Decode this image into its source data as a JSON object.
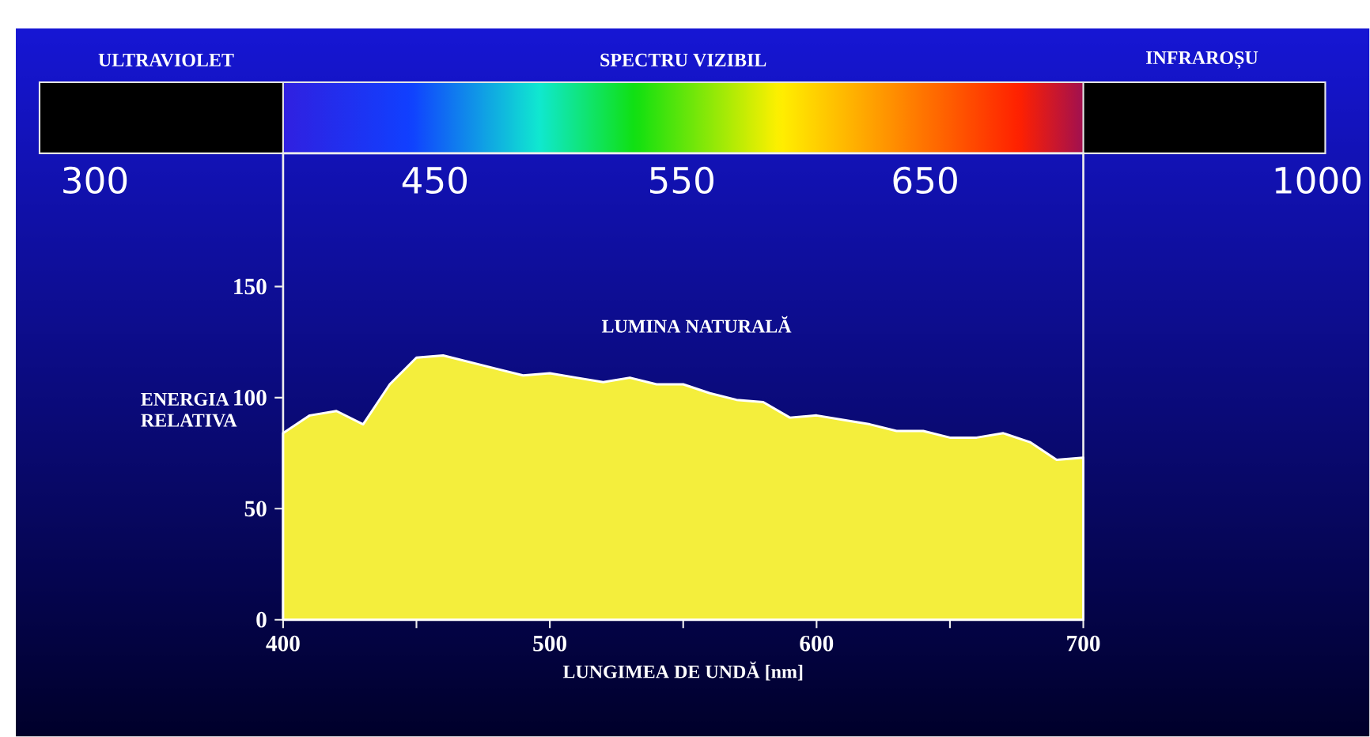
{
  "chart_data": {
    "type": "area",
    "xlabel": "LUNGIMEA DE UNDĂ [nm]",
    "ylabel": "ENERGIA RELATIVA",
    "x": [
      400,
      410,
      420,
      430,
      440,
      450,
      460,
      470,
      480,
      490,
      500,
      510,
      520,
      530,
      540,
      550,
      560,
      570,
      580,
      590,
      600,
      610,
      620,
      630,
      640,
      650,
      660,
      670,
      680,
      690,
      700
    ],
    "series": [
      {
        "name": "LUMINA NATURALĂ",
        "color": "#f4ee3c",
        "values": [
          84,
          92,
          94,
          88,
          106,
          118,
          119,
          116,
          113,
          110,
          111,
          109,
          107,
          109,
          106,
          106,
          102,
          99,
          98,
          91,
          92,
          90,
          88,
          85,
          85,
          82,
          82,
          84,
          80,
          72,
          73
        ]
      }
    ],
    "xlim": [
      400,
      700
    ],
    "ylim": [
      0,
      210
    ],
    "xticks": [
      400,
      {
        "value": 450,
        "label": null
      },
      500,
      {
        "value": 550,
        "label": null
      },
      600,
      {
        "value": 650,
        "label": null
      },
      700
    ],
    "yticks": [
      0,
      50,
      100,
      150
    ],
    "grid": false,
    "annotations": [
      "ULTRAVIOLET",
      "SPECTRU VIZIBIL",
      "INFRAROȘU",
      "300",
      "450",
      "550",
      "650",
      "1000"
    ]
  }
}
